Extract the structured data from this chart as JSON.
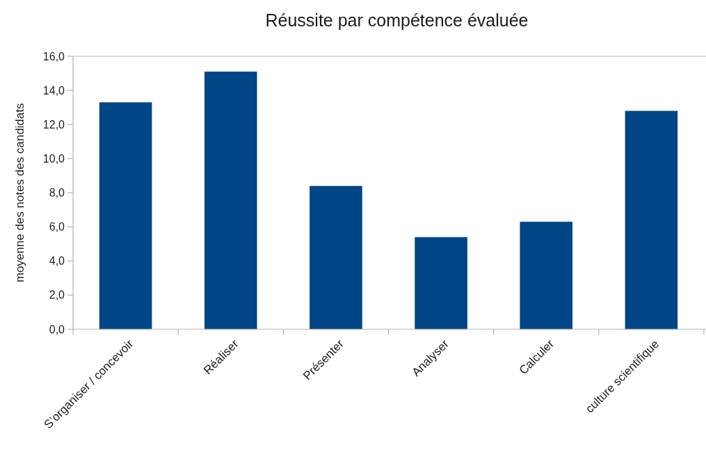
{
  "chart_data": {
    "type": "bar",
    "title": "Réussite par compétence évaluée",
    "ylabel": "moyenne des notes des candidats",
    "categories": [
      "S’organiser / concevoir",
      "Réaliser",
      "Présenter",
      "Analyser",
      "Calculer",
      "culture scientifique"
    ],
    "values": [
      13.3,
      15.1,
      8.4,
      5.4,
      6.3,
      12.8
    ],
    "color": "#004586",
    "ylim": [
      0,
      16
    ],
    "yticks": [
      {
        "value": 0,
        "label": "0,0"
      },
      {
        "value": 2,
        "label": "2,0"
      },
      {
        "value": 4,
        "label": "4,0"
      },
      {
        "value": 6,
        "label": "6,0"
      },
      {
        "value": 8,
        "label": "8,0"
      },
      {
        "value": 10,
        "label": "10,0"
      },
      {
        "value": 12,
        "label": "12,0"
      },
      {
        "value": 14,
        "label": "14,0"
      },
      {
        "value": 16,
        "label": "16,0"
      }
    ],
    "grid": false
  }
}
